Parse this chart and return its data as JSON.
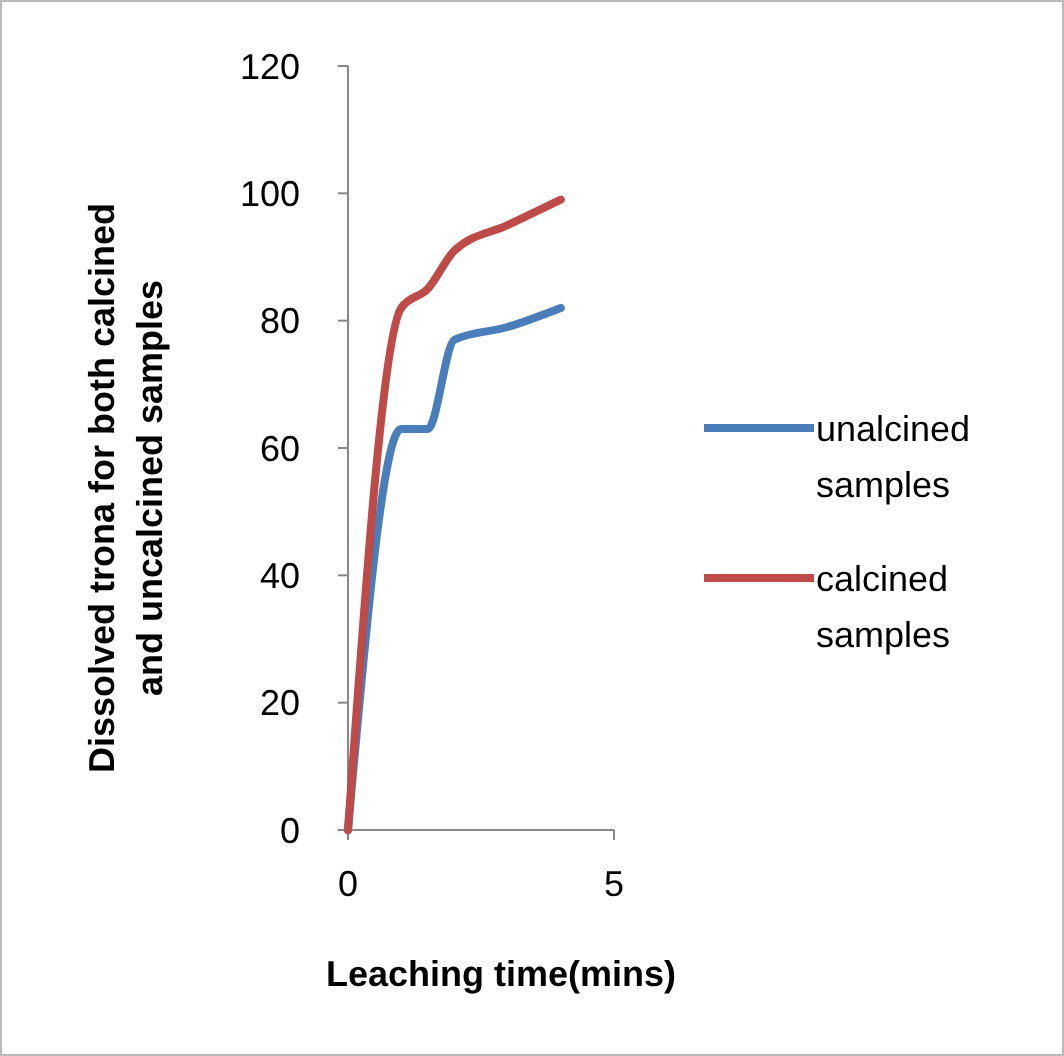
{
  "chart_data": {
    "type": "line",
    "xlabel": "Leaching time(mins)",
    "ylabel": "Dissolved trona for both calcined and uncalcined samples",
    "x": [
      0,
      1,
      1.5,
      2,
      3,
      4
    ],
    "series": [
      {
        "name": "unalcined samples",
        "color": "#4a7ebb",
        "values": [
          0,
          63,
          63,
          77,
          79,
          82
        ]
      },
      {
        "name": "calcined samples",
        "color": "#be4b48",
        "values": [
          0,
          82,
          85,
          91,
          95,
          99
        ]
      }
    ],
    "xlim": [
      0,
      5
    ],
    "xticks": [
      0,
      5
    ],
    "ylim": [
      0,
      120
    ],
    "yticks": [
      0,
      20,
      40,
      60,
      80,
      100,
      120
    ],
    "grid": false,
    "legend": "right",
    "marker": "none",
    "line_style": "solid"
  }
}
